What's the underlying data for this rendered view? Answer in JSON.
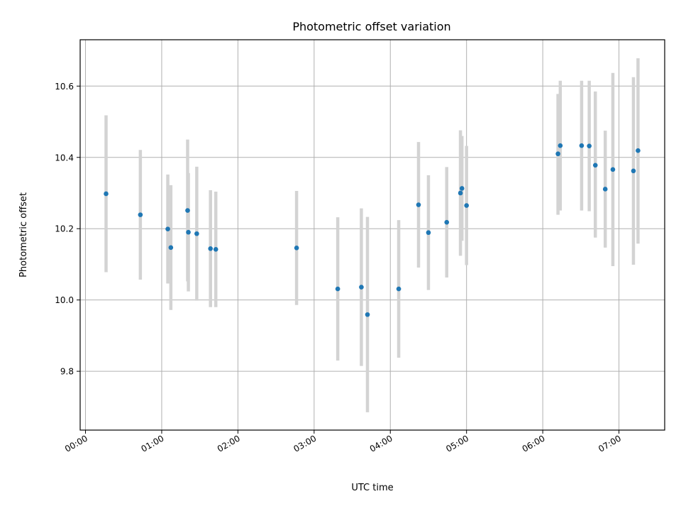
{
  "chart_data": {
    "type": "scatter",
    "title": "Photometric offset variation",
    "xlabel": "UTC time",
    "ylabel": "Photometric offset",
    "x_unit": "hours UTC",
    "xlim": [
      -0.07,
      7.6
    ],
    "ylim": [
      9.635,
      10.73
    ],
    "grid": true,
    "colors": {
      "point": "#1f77b4",
      "errorbar": "#d3d3d3",
      "grid": "#b0b0b0"
    },
    "x_ticks": [
      {
        "value": 0,
        "label": "00:00"
      },
      {
        "value": 1,
        "label": "01:00"
      },
      {
        "value": 2,
        "label": "02:00"
      },
      {
        "value": 3,
        "label": "03:00"
      },
      {
        "value": 4,
        "label": "04:00"
      },
      {
        "value": 5,
        "label": "05:00"
      },
      {
        "value": 6,
        "label": "06:00"
      },
      {
        "value": 7,
        "label": "07:00"
      }
    ],
    "y_ticks": [
      {
        "value": 9.8,
        "label": "9.8"
      },
      {
        "value": 10.0,
        "label": "10.0"
      },
      {
        "value": 10.2,
        "label": "10.2"
      },
      {
        "value": 10.4,
        "label": "10.4"
      },
      {
        "value": 10.6,
        "label": "10.6"
      }
    ],
    "points": [
      {
        "x": 0.27,
        "y": 10.298,
        "lo": 10.078,
        "hi": 10.518
      },
      {
        "x": 0.72,
        "y": 10.239,
        "lo": 10.057,
        "hi": 10.421
      },
      {
        "x": 1.08,
        "y": 10.199,
        "lo": 10.046,
        "hi": 10.352
      },
      {
        "x": 1.12,
        "y": 10.147,
        "lo": 9.972,
        "hi": 10.322
      },
      {
        "x": 1.34,
        "y": 10.251,
        "lo": 10.052,
        "hi": 10.45
      },
      {
        "x": 1.35,
        "y": 10.19,
        "lo": 10.024,
        "hi": 10.356
      },
      {
        "x": 1.46,
        "y": 10.186,
        "lo": 9.998,
        "hi": 10.374
      },
      {
        "x": 1.64,
        "y": 10.144,
        "lo": 9.98,
        "hi": 10.308
      },
      {
        "x": 1.71,
        "y": 10.142,
        "lo": 9.98,
        "hi": 10.304
      },
      {
        "x": 2.77,
        "y": 10.146,
        "lo": 9.986,
        "hi": 10.306
      },
      {
        "x": 3.31,
        "y": 10.031,
        "lo": 9.83,
        "hi": 10.232
      },
      {
        "x": 3.62,
        "y": 10.036,
        "lo": 9.815,
        "hi": 10.257
      },
      {
        "x": 3.7,
        "y": 9.959,
        "lo": 9.685,
        "hi": 10.233
      },
      {
        "x": 4.11,
        "y": 10.031,
        "lo": 9.838,
        "hi": 10.224
      },
      {
        "x": 4.37,
        "y": 10.267,
        "lo": 10.091,
        "hi": 10.443
      },
      {
        "x": 4.5,
        "y": 10.189,
        "lo": 10.028,
        "hi": 10.35
      },
      {
        "x": 4.74,
        "y": 10.218,
        "lo": 10.063,
        "hi": 10.373
      },
      {
        "x": 4.92,
        "y": 10.3,
        "lo": 10.124,
        "hi": 10.476
      },
      {
        "x": 4.94,
        "y": 10.313,
        "lo": 10.166,
        "hi": 10.46
      },
      {
        "x": 5.0,
        "y": 10.265,
        "lo": 10.098,
        "hi": 10.432
      },
      {
        "x": 6.2,
        "y": 10.41,
        "lo": 10.239,
        "hi": 10.578
      },
      {
        "x": 6.23,
        "y": 10.433,
        "lo": 10.251,
        "hi": 10.615
      },
      {
        "x": 6.51,
        "y": 10.433,
        "lo": 10.251,
        "hi": 10.615
      },
      {
        "x": 6.61,
        "y": 10.432,
        "lo": 10.249,
        "hi": 10.615
      },
      {
        "x": 6.69,
        "y": 10.378,
        "lo": 10.175,
        "hi": 10.585
      },
      {
        "x": 6.82,
        "y": 10.311,
        "lo": 10.147,
        "hi": 10.475
      },
      {
        "x": 6.92,
        "y": 10.366,
        "lo": 10.095,
        "hi": 10.637
      },
      {
        "x": 7.19,
        "y": 10.362,
        "lo": 10.099,
        "hi": 10.625
      },
      {
        "x": 7.25,
        "y": 10.419,
        "lo": 10.158,
        "hi": 10.678
      }
    ]
  }
}
